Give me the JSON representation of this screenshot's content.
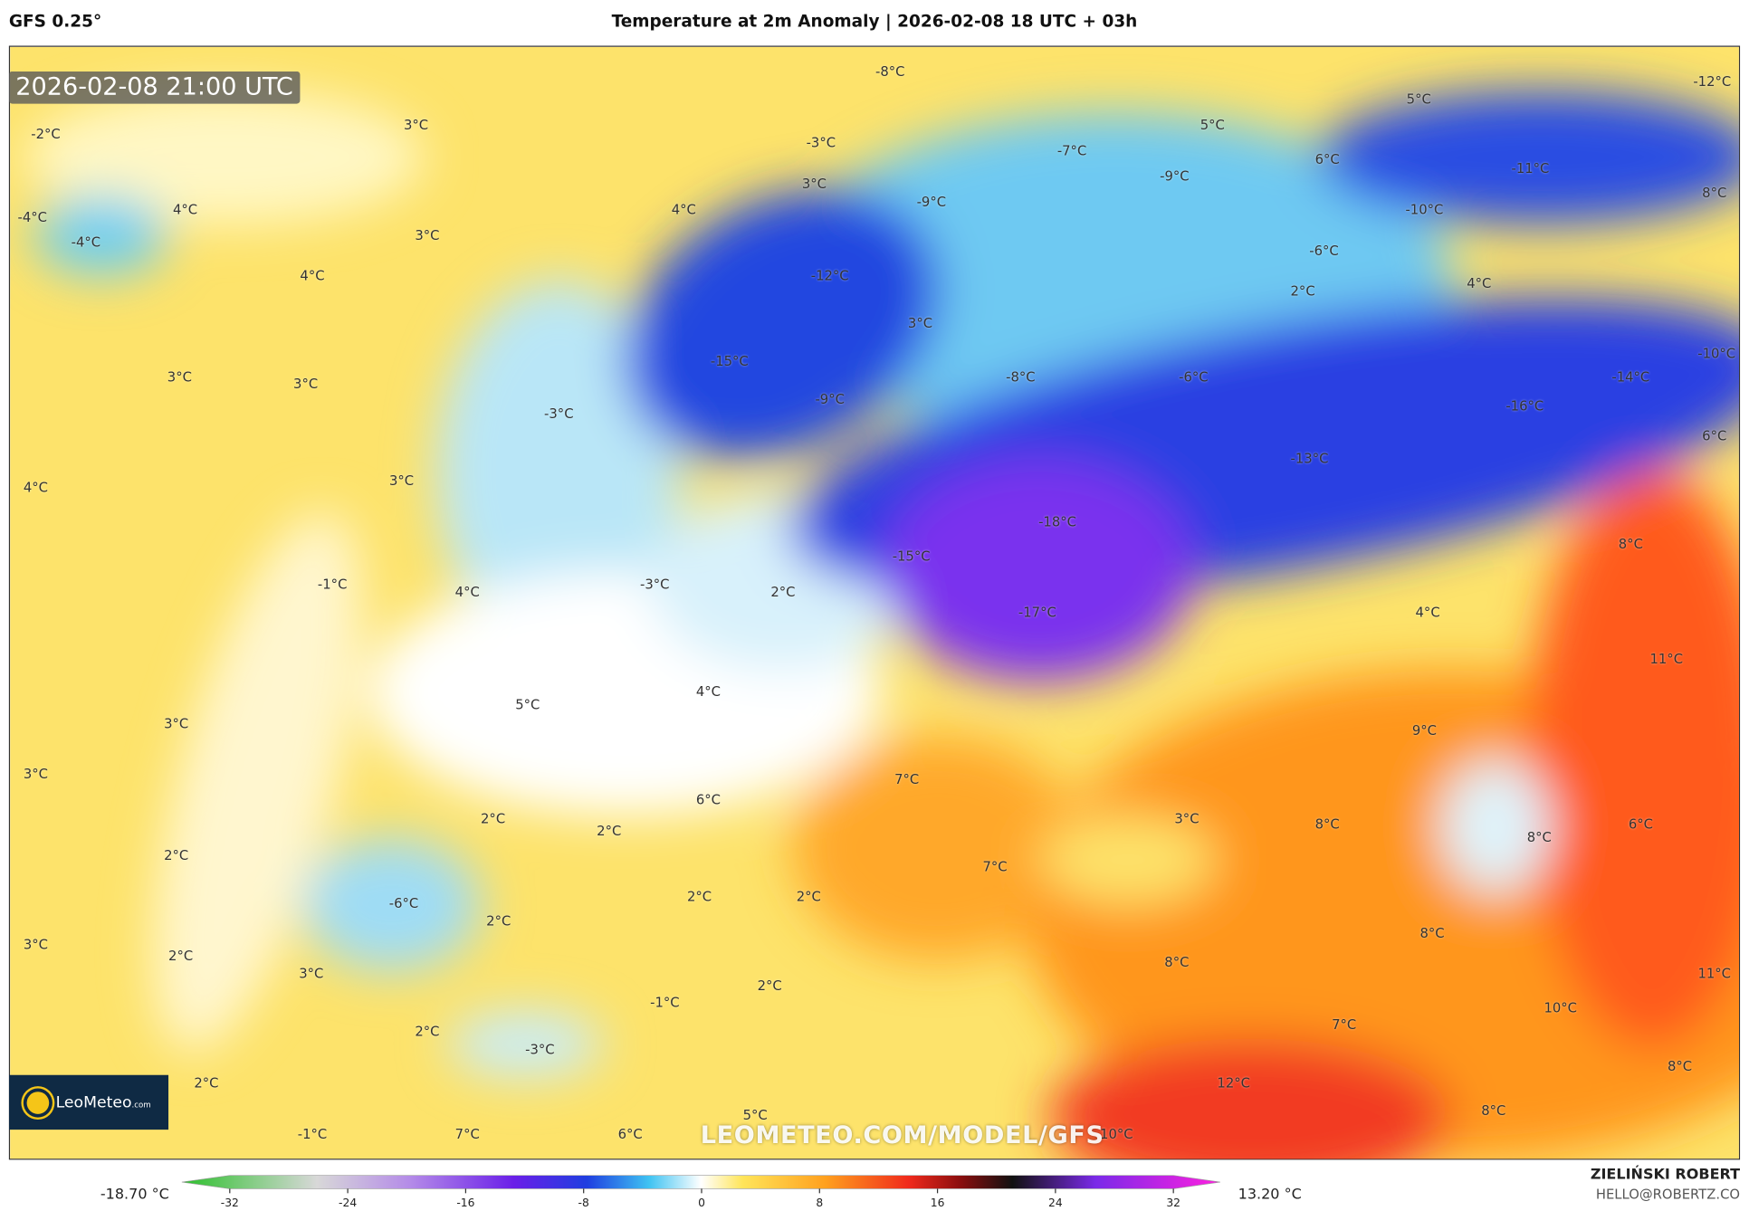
{
  "header": {
    "model": "GFS 0.25°",
    "title": "Temperature at 2m Anomaly | 2026-02-08 18 UTC + 03h"
  },
  "timestamp": "2026-02-08 21:00 UTC",
  "logo": {
    "name": "LeoMeteo",
    "suffix": ".com"
  },
  "watermark": "LEOMETEO.COM/MODEL/GFS",
  "credit": {
    "author": "ZIELIŃSKI ROBERT",
    "email": "HELLO@ROBERTZ.CO"
  },
  "colorbar": {
    "min_label": "-18.70 °C",
    "max_label": "13.20 °C",
    "ticks": [
      -32,
      -24,
      -16,
      -8,
      0,
      8,
      16,
      24,
      32
    ]
  },
  "map_labels": [
    "3°C",
    "-2°C",
    "-8°C",
    "5°C",
    "-12°C",
    "5°C",
    "-3°C",
    "-7°C",
    "6°C",
    "3°C",
    "-9°C",
    "-11°C",
    "4°C",
    "-4°C",
    "-4°C",
    "4°C",
    "-9°C",
    "-10°C",
    "8°C",
    "3°C",
    "-6°C",
    "4°C",
    "-12°C",
    "2°C",
    "4°C",
    "3°C",
    "3°C",
    "3°C",
    "-15°C",
    "-8°C",
    "-6°C",
    "-14°C",
    "-10°C",
    "-3°C",
    "-9°C",
    "-16°C",
    "6°C",
    "4°C",
    "3°C",
    "-13°C",
    "-18°C",
    "8°C",
    "-15°C",
    "-1°C",
    "4°C",
    "-3°C",
    "2°C",
    "-17°C",
    "4°C",
    "11°C",
    "4°C",
    "5°C",
    "3°C",
    "9°C",
    "3°C",
    "7°C",
    "6°C",
    "2°C",
    "2°C",
    "3°C",
    "8°C",
    "6°C",
    "8°C",
    "2°C",
    "7°C",
    "-6°C",
    "2°C",
    "2°C",
    "2°C",
    "8°C",
    "3°C",
    "2°C",
    "8°C",
    "3°C",
    "11°C",
    "2°C",
    "-1°C",
    "10°C",
    "2°C",
    "7°C",
    "-3°C",
    "8°C",
    "2°C",
    "12°C",
    "5°C",
    "8°C",
    "-1°C",
    "7°C",
    "6°C",
    "10°C"
  ]
}
